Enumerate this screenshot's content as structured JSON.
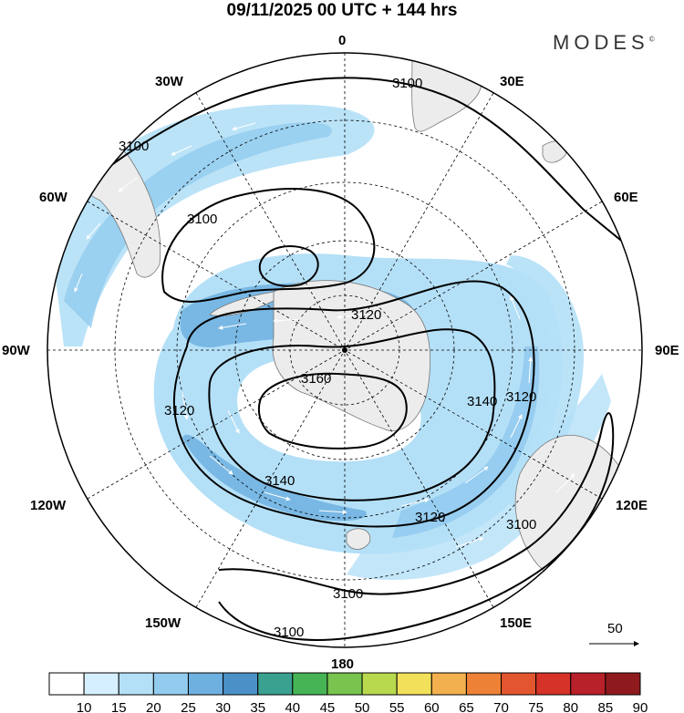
{
  "header": {
    "title": "09/11/2025  00 UTC  + 144 hrs",
    "brand": "MODES",
    "brand_mark": "©"
  },
  "map": {
    "longitude_labels": {
      "lon_0": "0",
      "lon_30e": "30E",
      "lon_60e": "60E",
      "lon_90e": "90E",
      "lon_120e": "120E",
      "lon_150e": "150E",
      "lon_180": "180",
      "lon_150w": "150W",
      "lon_120w": "120W",
      "lon_90w": "90W",
      "lon_60w": "60W",
      "lon_30w": "30W"
    },
    "contour_labels": {
      "c1": "3100",
      "c2": "3100",
      "c3": "3100",
      "c4": "3120",
      "c5": "3120",
      "c6": "3120",
      "c7": "3120",
      "c8": "3140",
      "c9": "3140",
      "c10": "3160",
      "c11": "3100",
      "c12": "3100",
      "c13": "3100"
    },
    "reference_vector": {
      "label": "50"
    },
    "colors": {
      "land": "#ececec",
      "coast": "#777777",
      "contour": "#000000",
      "wind_arrow": "#ffffff"
    }
  },
  "colorbar": {
    "ticks": [
      "10",
      "15",
      "20",
      "25",
      "30",
      "35",
      "40",
      "45",
      "50",
      "55",
      "60",
      "65",
      "70",
      "75",
      "80",
      "85",
      "90"
    ],
    "colors": [
      "#ffffff",
      "#d6efff",
      "#b4e0f7",
      "#92cbee",
      "#6eb0e0",
      "#4b91c8",
      "#3aa08f",
      "#46b455",
      "#78c44e",
      "#b8d94e",
      "#f2e05a",
      "#f2b04e",
      "#ed8237",
      "#e2552e",
      "#d63227",
      "#b8202a",
      "#8f1a1e"
    ]
  }
}
